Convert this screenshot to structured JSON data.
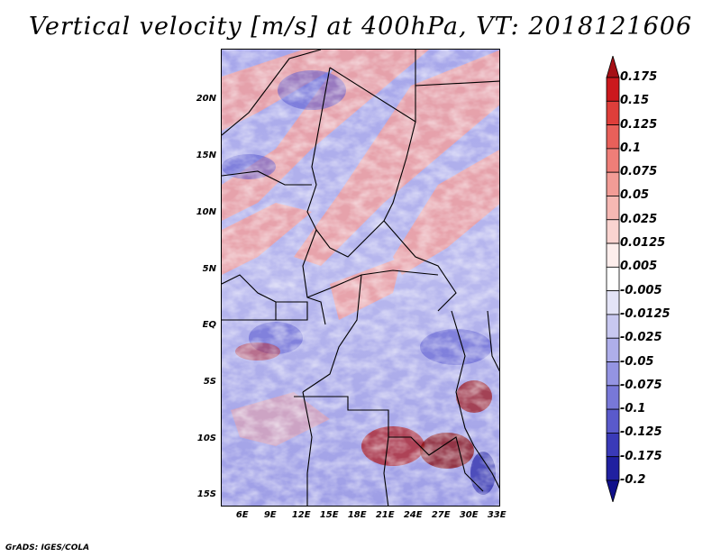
{
  "title": "Vertical velocity [m/s] at 400hPa, VT: 2018121606",
  "footer": "GrADS: IGES/COLA",
  "map": {
    "lon_range": [
      3.5,
      33.5
    ],
    "lat_range": [
      -16,
      24.5
    ],
    "lat_ticks": [
      {
        "value": 20,
        "label": "20N"
      },
      {
        "value": 15,
        "label": "15N"
      },
      {
        "value": 10,
        "label": "10N"
      },
      {
        "value": 5,
        "label": "5N"
      },
      {
        "value": 0,
        "label": "EQ"
      },
      {
        "value": -5,
        "label": "5S"
      },
      {
        "value": -10,
        "label": "10S"
      },
      {
        "value": -15,
        "label": "15S"
      }
    ],
    "lon_ticks": [
      {
        "value": 6,
        "label": "6E"
      },
      {
        "value": 9,
        "label": "9E"
      },
      {
        "value": 12,
        "label": "12E"
      },
      {
        "value": 15,
        "label": "15E"
      },
      {
        "value": 18,
        "label": "18E"
      },
      {
        "value": 21,
        "label": "21E"
      },
      {
        "value": 24,
        "label": "24E"
      },
      {
        "value": 27,
        "label": "27E"
      },
      {
        "value": 30,
        "label": "30E"
      },
      {
        "value": 33,
        "label": "33E"
      }
    ]
  },
  "colorbar": {
    "labels": [
      "0.175",
      "0.15",
      "0.125",
      "0.1",
      "0.075",
      "0.05",
      "0.025",
      "0.0125",
      "0.005",
      "-0.005",
      "-0.0125",
      "-0.025",
      "-0.05",
      "-0.075",
      "-0.1",
      "-0.125",
      "-0.175",
      "-0.2"
    ],
    "colors": [
      "#a50f15",
      "#cb181d",
      "#de3e3a",
      "#e8605a",
      "#ef7e78",
      "#f29c96",
      "#f6b8b3",
      "#fad4d0",
      "#fdeeec",
      "#ffffff",
      "#e4e4f7",
      "#c8c8f0",
      "#aeaeea",
      "#9494e2",
      "#7878d8",
      "#5a5acb",
      "#3a3ab8",
      "#2020a0",
      "#10108a"
    ]
  }
}
